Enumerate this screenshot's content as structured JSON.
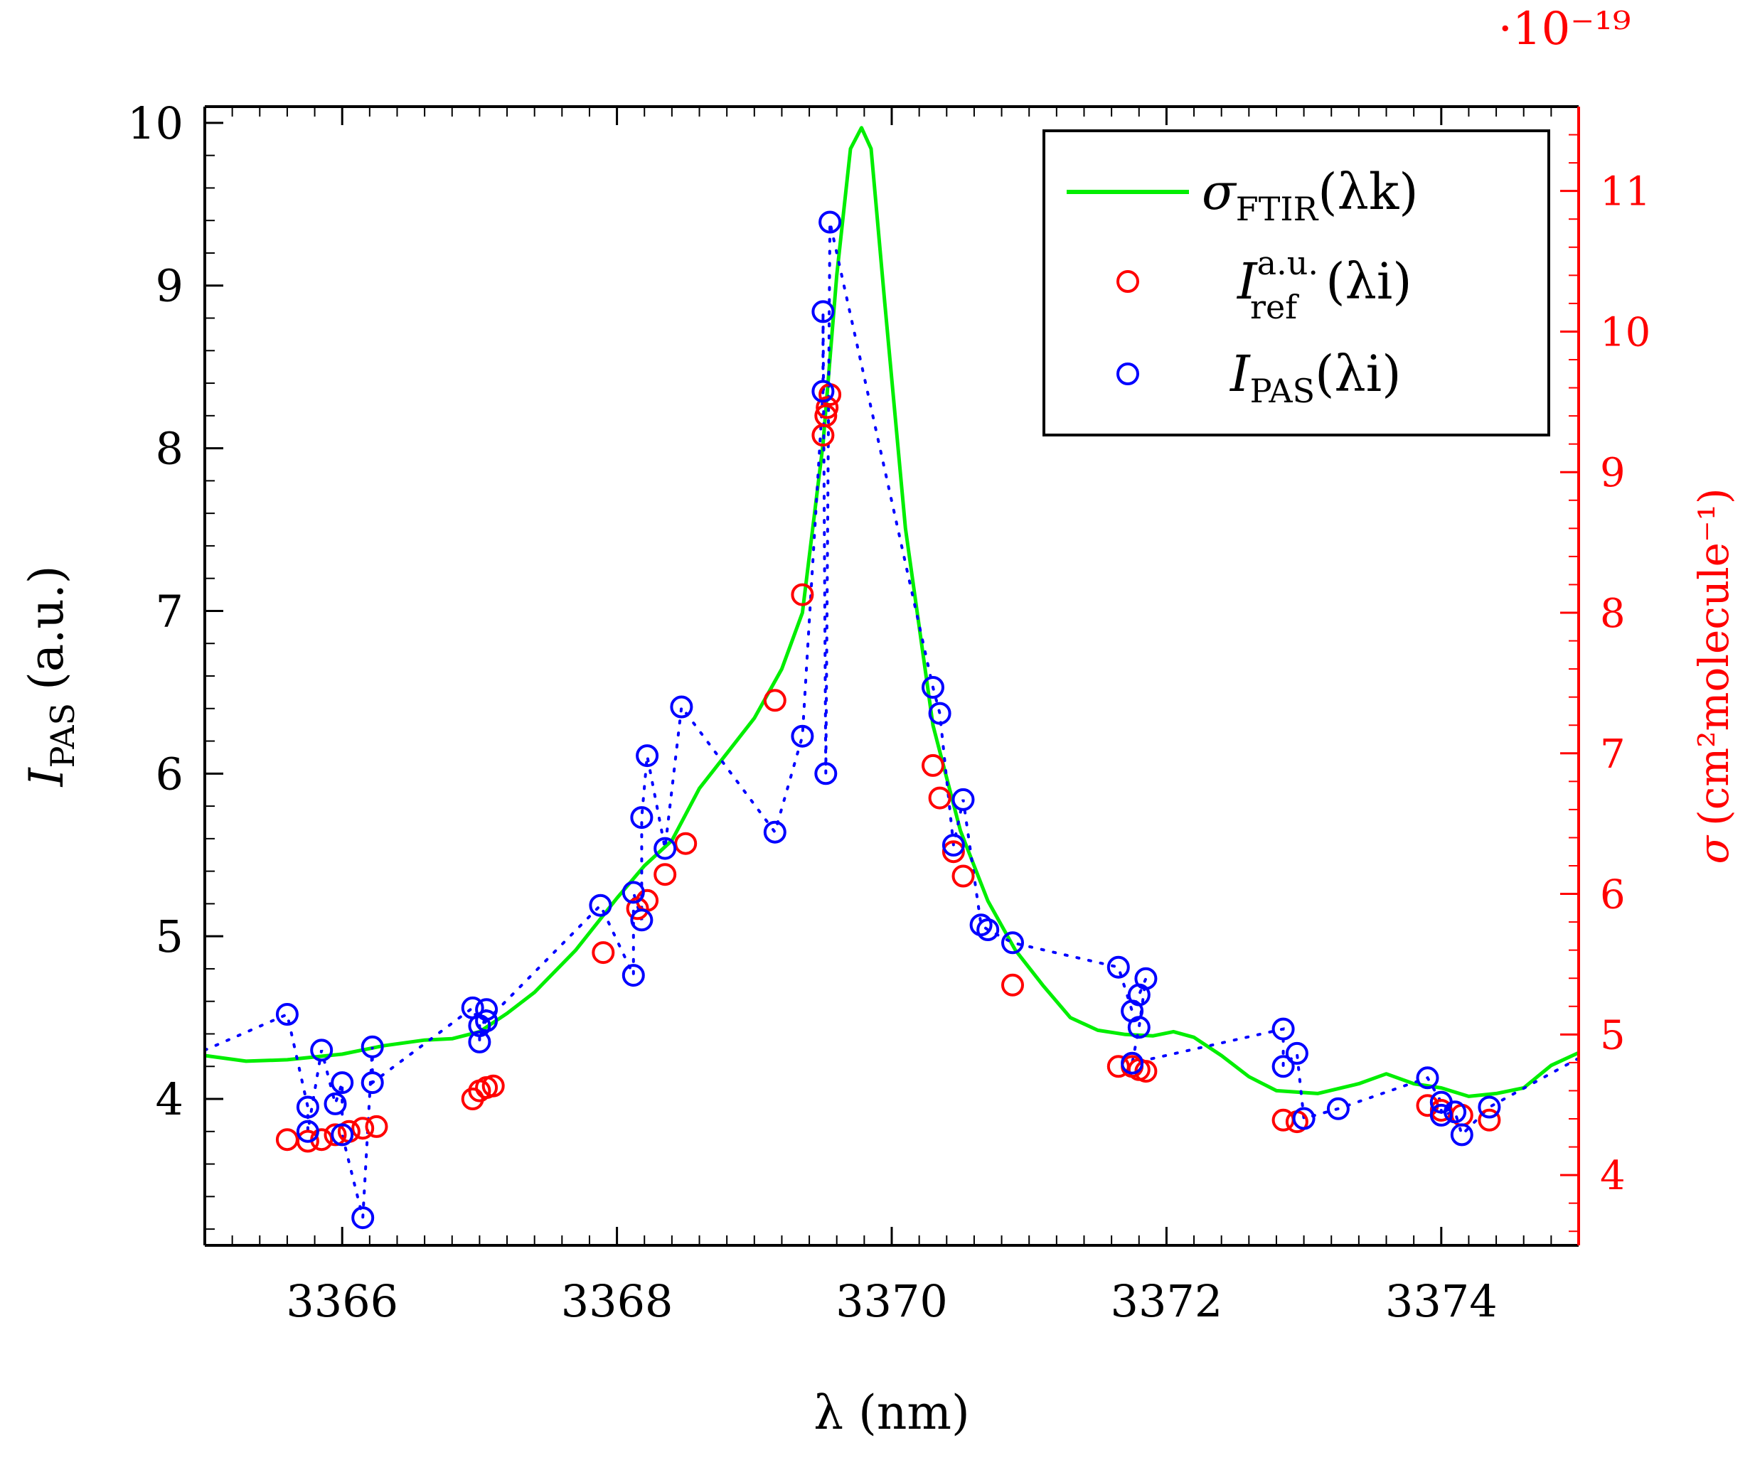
{
  "chart_data": {
    "type": "scatter",
    "xlabel": "λ (nm)",
    "ylabel_left": {
      "symbol": "I",
      "subscript": "PAS",
      "unit": "(a.u.)"
    },
    "ylabel_right": {
      "symbol": "σ",
      "unit": "(cm²molecule⁻¹)"
    },
    "right_axis_multiplier": "·10⁻¹⁹",
    "xlim": [
      3365,
      3375
    ],
    "ylim_left": [
      3.1,
      10.1
    ],
    "ylim_right": [
      3.5,
      11.6
    ],
    "x_ticks": [
      3366,
      3368,
      3370,
      3372,
      3374
    ],
    "y_ticks_left": [
      4,
      5,
      6,
      7,
      8,
      9,
      10
    ],
    "y_ticks_right": [
      4,
      5,
      6,
      7,
      8,
      9,
      10,
      11
    ],
    "legend_position": "top-right",
    "legend": [
      {
        "symbol": "σ",
        "sub": "FTIR",
        "arg": "(λk)",
        "color": "#00ee00",
        "style": "line"
      },
      {
        "symbol": "I",
        "sup": "a.u.",
        "sub": "ref",
        "arg": "(λi)",
        "color": "#ff0000",
        "style": "circle"
      },
      {
        "symbol": "I",
        "sub": "PAS",
        "arg": "(λi)",
        "color": "#0000ff",
        "style": "circle"
      }
    ],
    "series": [
      {
        "name": "sigma_FTIR",
        "axis": "right",
        "color": "#00ee00",
        "points": [
          [
            3365.0,
            4.85
          ],
          [
            3365.3,
            4.81
          ],
          [
            3365.6,
            4.82
          ],
          [
            3366.0,
            4.86
          ],
          [
            3366.3,
            4.92
          ],
          [
            3366.6,
            4.96
          ],
          [
            3366.8,
            4.97
          ],
          [
            3367.0,
            5.02
          ],
          [
            3367.2,
            5.15
          ],
          [
            3367.4,
            5.3
          ],
          [
            3367.7,
            5.6
          ],
          [
            3368.0,
            5.97
          ],
          [
            3368.2,
            6.2
          ],
          [
            3368.4,
            6.38
          ],
          [
            3368.6,
            6.75
          ],
          [
            3368.8,
            7.0
          ],
          [
            3369.0,
            7.25
          ],
          [
            3369.2,
            7.6
          ],
          [
            3369.35,
            8.0
          ],
          [
            3369.5,
            9.2
          ],
          [
            3369.6,
            10.4
          ],
          [
            3369.7,
            11.3
          ],
          [
            3369.78,
            11.45
          ],
          [
            3369.85,
            11.3
          ],
          [
            3369.95,
            10.2
          ],
          [
            3370.1,
            8.6
          ],
          [
            3370.3,
            7.2
          ],
          [
            3370.5,
            6.45
          ],
          [
            3370.7,
            5.95
          ],
          [
            3370.9,
            5.6
          ],
          [
            3371.1,
            5.35
          ],
          [
            3371.3,
            5.12
          ],
          [
            3371.5,
            5.03
          ],
          [
            3371.7,
            5.0
          ],
          [
            3371.9,
            4.99
          ],
          [
            3372.05,
            5.02
          ],
          [
            3372.2,
            4.98
          ],
          [
            3372.4,
            4.85
          ],
          [
            3372.6,
            4.7
          ],
          [
            3372.8,
            4.6
          ],
          [
            3373.1,
            4.58
          ],
          [
            3373.4,
            4.65
          ],
          [
            3373.6,
            4.72
          ],
          [
            3373.8,
            4.65
          ],
          [
            3374.0,
            4.62
          ],
          [
            3374.2,
            4.56
          ],
          [
            3374.4,
            4.58
          ],
          [
            3374.6,
            4.62
          ],
          [
            3374.8,
            4.78
          ],
          [
            3375.0,
            4.87
          ]
        ]
      },
      {
        "name": "I_ref",
        "axis": "left",
        "color": "#ff0000",
        "points": [
          [
            3365.6,
            3.75
          ],
          [
            3365.75,
            3.74
          ],
          [
            3365.85,
            3.75
          ],
          [
            3365.95,
            3.78
          ],
          [
            3366.05,
            3.8
          ],
          [
            3366.15,
            3.82
          ],
          [
            3366.25,
            3.83
          ],
          [
            3366.95,
            4.0
          ],
          [
            3367.0,
            4.05
          ],
          [
            3367.05,
            4.07
          ],
          [
            3367.1,
            4.08
          ],
          [
            3367.9,
            4.9
          ],
          [
            3368.15,
            5.17
          ],
          [
            3368.22,
            5.22
          ],
          [
            3368.35,
            5.38
          ],
          [
            3368.5,
            5.57
          ],
          [
            3369.15,
            6.45
          ],
          [
            3369.35,
            7.1
          ],
          [
            3369.5,
            8.08
          ],
          [
            3369.52,
            8.2
          ],
          [
            3369.53,
            8.25
          ],
          [
            3369.55,
            8.33
          ],
          [
            3370.3,
            6.05
          ],
          [
            3370.35,
            5.85
          ],
          [
            3370.45,
            5.52
          ],
          [
            3370.52,
            5.37
          ],
          [
            3370.88,
            4.7
          ],
          [
            3371.65,
            4.2
          ],
          [
            3371.75,
            4.2
          ],
          [
            3371.8,
            4.18
          ],
          [
            3371.85,
            4.17
          ],
          [
            3372.85,
            3.87
          ],
          [
            3372.95,
            3.86
          ],
          [
            3373.9,
            3.96
          ],
          [
            3374.0,
            3.93
          ],
          [
            3374.15,
            3.9
          ],
          [
            3374.35,
            3.87
          ]
        ]
      },
      {
        "name": "I_PAS",
        "axis": "left",
        "color": "#0000ff",
        "dotted": true,
        "points": [
          [
            3365.6,
            4.52
          ],
          [
            3365.75,
            3.95
          ],
          [
            3365.75,
            3.8
          ],
          [
            3365.85,
            4.3
          ],
          [
            3365.95,
            3.97
          ],
          [
            3366.0,
            4.1
          ],
          [
            3366.0,
            3.78
          ],
          [
            3366.15,
            3.27
          ],
          [
            3366.22,
            4.32
          ],
          [
            3366.22,
            4.1
          ],
          [
            3366.95,
            4.56
          ],
          [
            3367.0,
            4.45
          ],
          [
            3367.0,
            4.35
          ],
          [
            3367.05,
            4.55
          ],
          [
            3367.05,
            4.48
          ],
          [
            3367.88,
            5.19
          ],
          [
            3368.12,
            4.76
          ],
          [
            3368.12,
            5.27
          ],
          [
            3368.18,
            5.1
          ],
          [
            3368.18,
            5.73
          ],
          [
            3368.22,
            6.11
          ],
          [
            3368.35,
            5.54
          ],
          [
            3368.47,
            6.41
          ],
          [
            3369.15,
            5.64
          ],
          [
            3369.35,
            6.23
          ],
          [
            3369.5,
            8.35
          ],
          [
            3369.5,
            8.84
          ],
          [
            3369.52,
            6.0
          ],
          [
            3369.55,
            9.39
          ],
          [
            3370.3,
            6.53
          ],
          [
            3370.35,
            6.37
          ],
          [
            3370.45,
            5.56
          ],
          [
            3370.52,
            5.84
          ],
          [
            3370.65,
            5.07
          ],
          [
            3370.7,
            5.04
          ],
          [
            3370.88,
            4.96
          ],
          [
            3371.65,
            4.81
          ],
          [
            3371.75,
            4.54
          ],
          [
            3371.8,
            4.64
          ],
          [
            3371.85,
            4.74
          ],
          [
            3371.8,
            4.44
          ],
          [
            3371.75,
            4.22
          ],
          [
            3372.85,
            4.43
          ],
          [
            3372.85,
            4.2
          ],
          [
            3372.95,
            4.28
          ],
          [
            3373.0,
            3.88
          ],
          [
            3373.25,
            3.94
          ],
          [
            3373.9,
            4.13
          ],
          [
            3374.0,
            3.98
          ],
          [
            3374.0,
            3.9
          ],
          [
            3374.1,
            3.92
          ],
          [
            3374.15,
            3.78
          ],
          [
            3374.35,
            3.95
          ]
        ]
      }
    ]
  }
}
